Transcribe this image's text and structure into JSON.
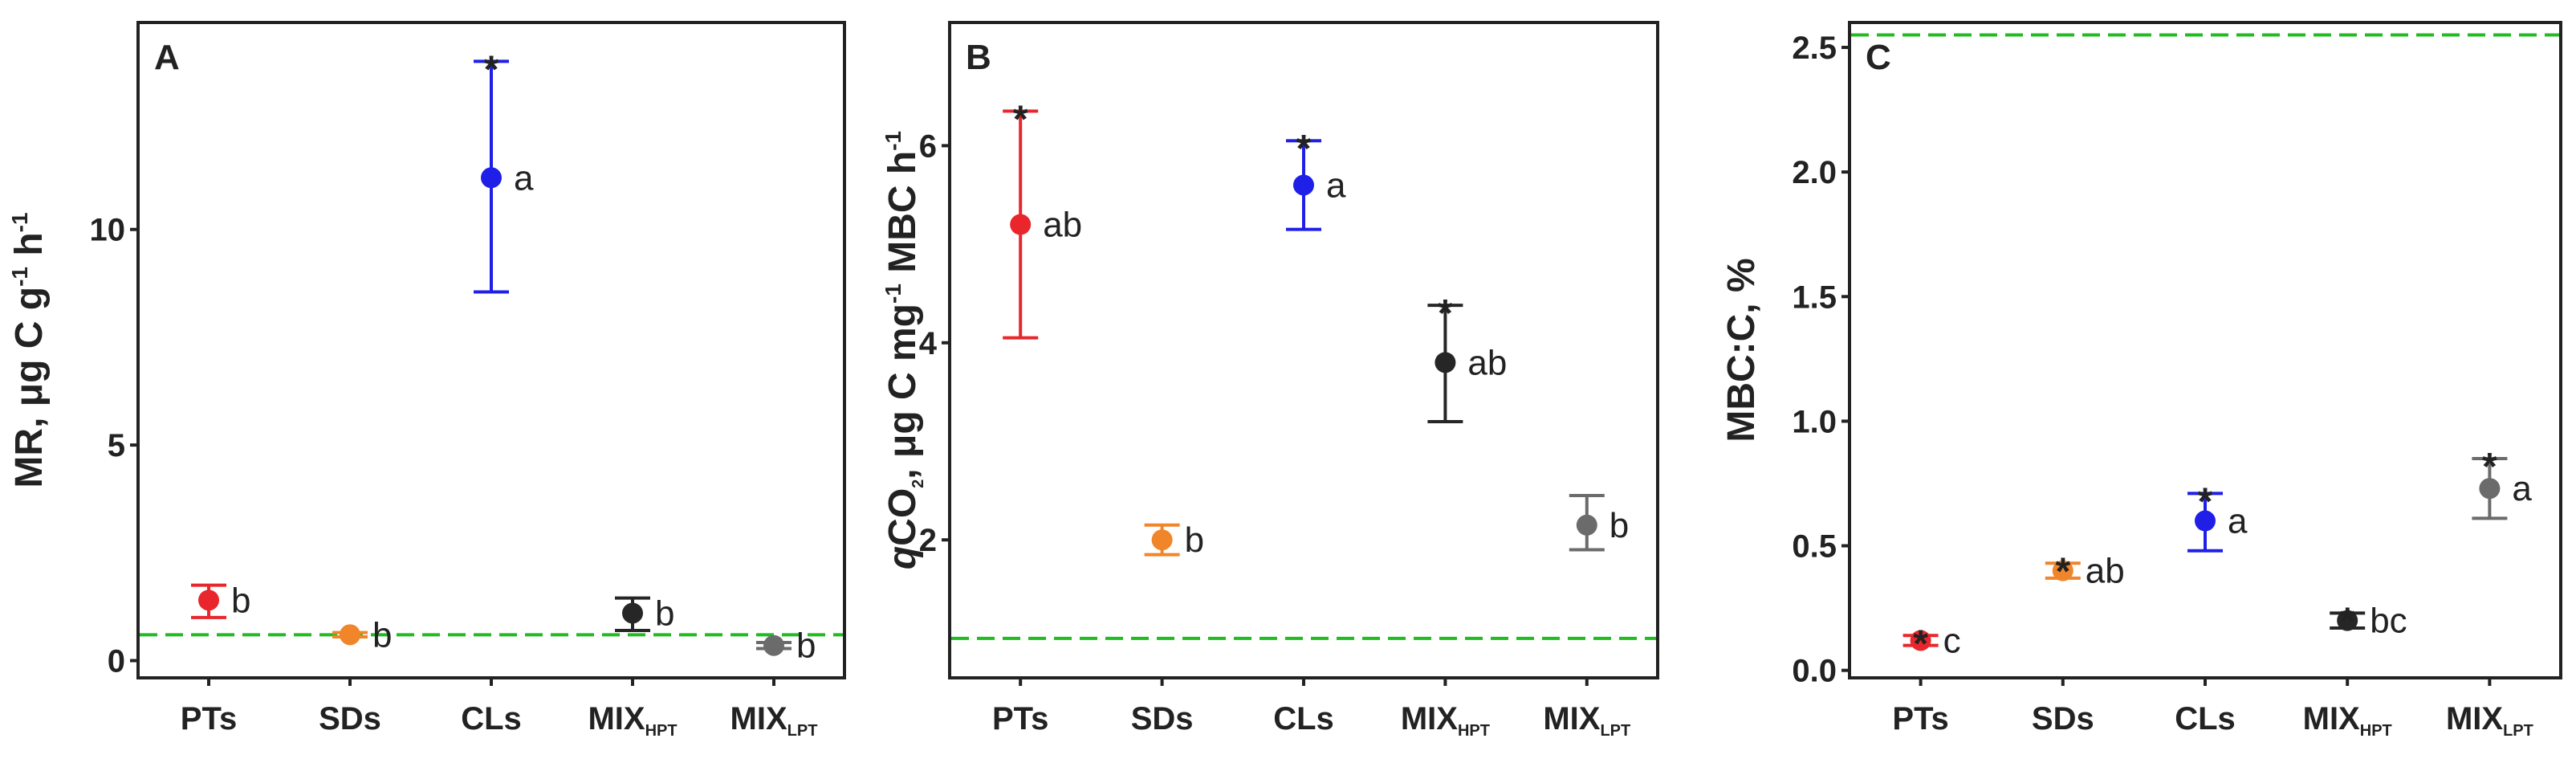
{
  "chart_data": [
    {
      "type": "scatter",
      "panel_label": "A",
      "ylabel": {
        "main": "MR, μg C g",
        "sup1": "-1",
        "mid": " h",
        "sup2": "-1"
      },
      "ylim": [
        -0.4,
        14.8
      ],
      "yticks": [
        0,
        5,
        10
      ],
      "ytick_labels": [
        "0",
        "5",
        "10"
      ],
      "reference_line": 0.6,
      "points": [
        {
          "group": "PTs",
          "x_label": "PTs",
          "x_sub": "",
          "mean": 1.4,
          "err_low": 1.0,
          "err_high": 1.75,
          "letter": "b",
          "star": false,
          "color": "#e8262b"
        },
        {
          "group": "SDs",
          "x_label": "SDs",
          "x_sub": "",
          "mean": 0.6,
          "err_low": 0.55,
          "err_high": 0.65,
          "letter": "b",
          "star": false,
          "color": "#f0852a"
        },
        {
          "group": "CLs",
          "x_label": "CLs",
          "x_sub": "",
          "mean": 11.2,
          "err_low": 8.55,
          "err_high": 13.9,
          "letter": "a",
          "star": true,
          "color": "#1f1fe8"
        },
        {
          "group": "MIX_HPT",
          "x_label": "MIX",
          "x_sub": "HPT",
          "mean": 1.1,
          "err_low": 0.7,
          "err_high": 1.45,
          "letter": "b",
          "star": false,
          "color": "#262626"
        },
        {
          "group": "MIX_LPT",
          "x_label": "MIX",
          "x_sub": "LPT",
          "mean": 0.35,
          "err_low": 0.28,
          "err_high": 0.42,
          "letter": "b",
          "star": false,
          "color": "#6b6b6b"
        }
      ]
    },
    {
      "type": "scatter",
      "panel_label": "B",
      "ylabel": {
        "italic": "q",
        "main": "CO",
        "sub": "2",
        "rest": ",  μg C mg",
        "sup": "-1",
        "tail": " MBC h",
        "sup2": "-1"
      },
      "ylim": [
        0.6,
        7.25
      ],
      "yticks": [
        2,
        4,
        6
      ],
      "ytick_labels": [
        "2",
        "4",
        "6"
      ],
      "reference_line": 1.0,
      "points": [
        {
          "group": "PTs",
          "x_label": "PTs",
          "x_sub": "",
          "mean": 5.2,
          "err_low": 4.05,
          "err_high": 6.35,
          "letter": "ab",
          "star": true,
          "color": "#e8262b"
        },
        {
          "group": "SDs",
          "x_label": "SDs",
          "x_sub": "",
          "mean": 2.0,
          "err_low": 1.85,
          "err_high": 2.15,
          "letter": "b",
          "star": false,
          "color": "#f0852a"
        },
        {
          "group": "CLs",
          "x_label": "CLs",
          "x_sub": "",
          "mean": 5.6,
          "err_low": 5.15,
          "err_high": 6.05,
          "letter": "a",
          "star": true,
          "color": "#1f1fe8"
        },
        {
          "group": "MIX_HPT",
          "x_label": "MIX",
          "x_sub": "HPT",
          "mean": 3.8,
          "err_low": 3.2,
          "err_high": 4.38,
          "letter": "ab",
          "star": true,
          "color": "#262626"
        },
        {
          "group": "MIX_LPT",
          "x_label": "MIX",
          "x_sub": "LPT",
          "mean": 2.15,
          "err_low": 1.9,
          "err_high": 2.45,
          "letter": "b",
          "star": false,
          "color": "#6b6b6b"
        }
      ]
    },
    {
      "type": "scatter",
      "panel_label": "C",
      "ylabel": {
        "main": "MBC:C, %"
      },
      "ylim": [
        -0.03,
        2.6
      ],
      "yticks": [
        0.0,
        0.5,
        1.0,
        1.5,
        2.0,
        2.5
      ],
      "ytick_labels": [
        "0.0",
        "0.5",
        "1.0",
        "1.5",
        "2.0",
        "2.5"
      ],
      "reference_line": 2.55,
      "points": [
        {
          "group": "PTs",
          "x_label": "PTs",
          "x_sub": "",
          "mean": 0.12,
          "err_low": 0.1,
          "err_high": 0.14,
          "letter": "c",
          "star": true,
          "color": "#e8262b"
        },
        {
          "group": "SDs",
          "x_label": "SDs",
          "x_sub": "",
          "mean": 0.4,
          "err_low": 0.37,
          "err_high": 0.43,
          "letter": "ab",
          "star": true,
          "color": "#f0852a"
        },
        {
          "group": "CLs",
          "x_label": "CLs",
          "x_sub": "",
          "mean": 0.6,
          "err_low": 0.48,
          "err_high": 0.71,
          "letter": "a",
          "star": true,
          "color": "#1f1fe8"
        },
        {
          "group": "MIX_HPT",
          "x_label": "MIX",
          "x_sub": "HPT",
          "mean": 0.2,
          "err_low": 0.17,
          "err_high": 0.23,
          "letter": "bc",
          "star": true,
          "color": "#262626"
        },
        {
          "group": "MIX_LPT",
          "x_label": "MIX",
          "x_sub": "LPT",
          "mean": 0.73,
          "err_low": 0.61,
          "err_high": 0.85,
          "letter": "a",
          "star": true,
          "color": "#6b6b6b"
        }
      ]
    }
  ],
  "style": {
    "reference_line_color": "#22bb22",
    "axis_color": "#222222"
  }
}
